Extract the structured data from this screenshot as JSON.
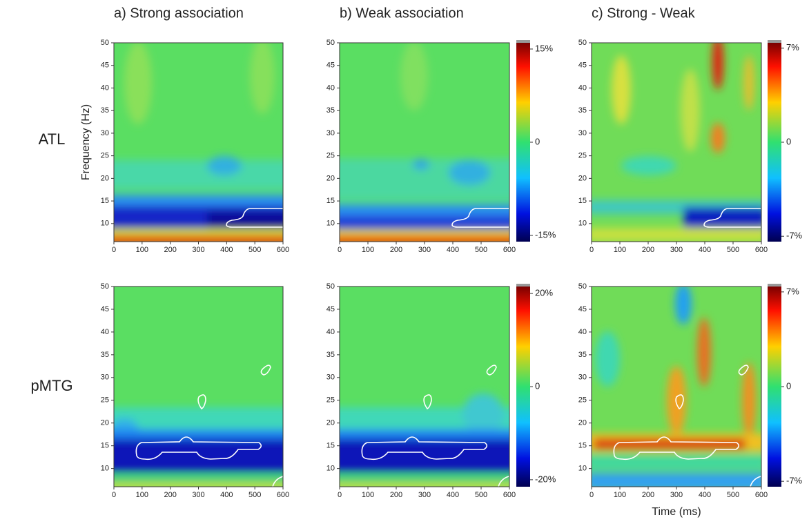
{
  "row_labels": [
    "ATL",
    "pMTG"
  ],
  "chart_data": [
    {
      "type": "heatmap",
      "title": "a) Strong association",
      "ylabel": "Frequency (Hz)",
      "xlim": [
        0,
        600
      ],
      "xticks": [
        0,
        100,
        200,
        300,
        400,
        500,
        600
      ],
      "ylim": [
        6,
        50
      ],
      "yticks": [
        10,
        15,
        20,
        25,
        30,
        35,
        40,
        45,
        50
      ]
    },
    {
      "type": "heatmap",
      "title": "b) Weak association",
      "xlim": [
        0,
        600
      ],
      "xticks": [
        0,
        100,
        200,
        300,
        400,
        500,
        600
      ],
      "ylim": [
        6,
        50
      ],
      "yticks": [
        10,
        15,
        20,
        25,
        30,
        35,
        40,
        45,
        50
      ],
      "colorbar": {
        "lim": [
          -16,
          16
        ],
        "ticks": [
          {
            "value": 15,
            "label": "15%"
          },
          0,
          {
            "value": -15,
            "label": "-15%"
          }
        ]
      }
    },
    {
      "type": "heatmap",
      "title": "c) Strong - Weak",
      "xlim": [
        0,
        600
      ],
      "xticks": [
        0,
        100,
        200,
        300,
        400,
        500,
        600
      ],
      "ylim": [
        6,
        50
      ],
      "yticks": [
        10,
        15,
        20,
        25,
        30,
        35,
        40,
        45,
        50
      ],
      "colorbar": {
        "lim": [
          -7.4,
          7.4
        ],
        "ticks": [
          {
            "value": 7,
            "label": "7%"
          },
          0,
          {
            "value": -7,
            "label": "-7%"
          }
        ]
      }
    },
    {
      "type": "heatmap",
      "xlim": [
        0,
        600
      ],
      "xticks": [
        0,
        100,
        200,
        300,
        400,
        500,
        600
      ],
      "ylim": [
        6,
        50
      ],
      "yticks": [
        10,
        15,
        20,
        25,
        30,
        35,
        40,
        45,
        50
      ]
    },
    {
      "type": "heatmap",
      "xlim": [
        0,
        600
      ],
      "xticks": [
        0,
        100,
        200,
        300,
        400,
        500,
        600
      ],
      "ylim": [
        6,
        50
      ],
      "yticks": [
        10,
        15,
        20,
        25,
        30,
        35,
        40,
        45,
        50
      ],
      "colorbar": {
        "lim": [
          -21.5,
          21.5
        ],
        "ticks": [
          {
            "value": 20,
            "label": "20%"
          },
          0,
          {
            "value": -20,
            "label": "-20%"
          }
        ]
      }
    },
    {
      "type": "heatmap",
      "xlabel": "Time (ms)",
      "xlim": [
        0,
        600
      ],
      "xticks": [
        0,
        100,
        200,
        300,
        400,
        500,
        600
      ],
      "ylim": [
        6,
        50
      ],
      "yticks": [
        10,
        15,
        20,
        25,
        30,
        35,
        40,
        45,
        50
      ],
      "colorbar": {
        "lim": [
          -7.4,
          7.4
        ],
        "ticks": [
          {
            "value": 7,
            "label": "7%"
          },
          0,
          {
            "value": -7,
            "label": "-7%"
          }
        ]
      }
    }
  ]
}
